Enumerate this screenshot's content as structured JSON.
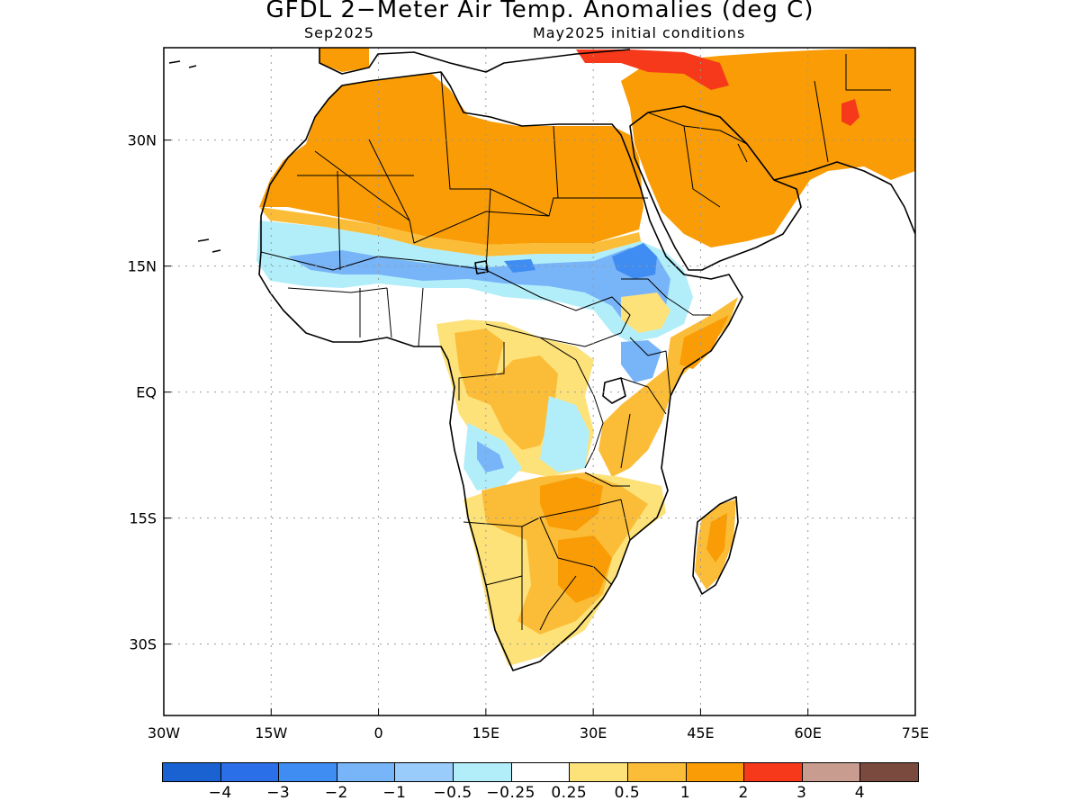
{
  "title": "GFDL 2−Meter Air Temp. Anomalies (deg C)",
  "subtitle_left": "Sep2025",
  "subtitle_right": "May2025 initial conditions",
  "axes": {
    "lon_range": [
      -30,
      75
    ],
    "lat_range": [
      -38.5,
      41
    ],
    "lon_ticks": [
      "30W",
      "15W",
      "0",
      "15E",
      "30E",
      "45E",
      "60E",
      "75E"
    ],
    "lat_ticks": [
      "30N",
      "15N",
      "EQ",
      "15S",
      "30S"
    ],
    "grid": "dotted"
  },
  "legend": {
    "colors": [
      "#1a62d1",
      "#2a6ee8",
      "#3f8cf2",
      "#78b4f8",
      "#99ccfb",
      "#b2eef9",
      "#ffffff",
      "#fde27a",
      "#fbbd38",
      "#f99c05",
      "#f6391b",
      "#c89d90",
      "#7a4a3e"
    ],
    "labels": [
      "−4",
      "−3",
      "−2",
      "−1",
      "−0.5",
      "−0.25",
      "0.25",
      "0.5",
      "1",
      "2",
      "3",
      "4"
    ]
  },
  "colors": {
    "warm_strong": "#f99c05",
    "warm_mid": "#fbbd38",
    "warm_weak": "#fde27a",
    "cool_weak": "#b2eef9",
    "cool_mid": "#78b4f8",
    "cool_strong": "#3f8cf2",
    "hot": "#f6391b"
  }
}
